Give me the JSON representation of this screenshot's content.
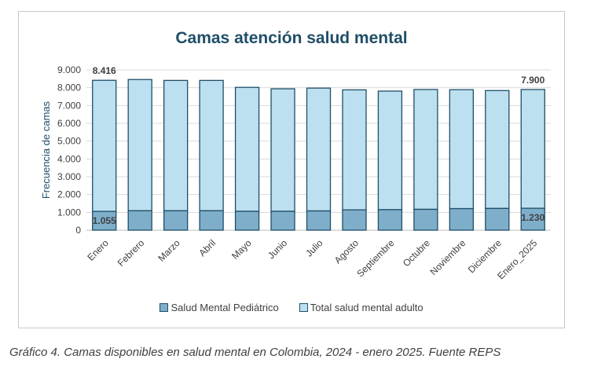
{
  "chart_data": {
    "type": "bar",
    "stacked": true,
    "title": "Camas atención salud mental",
    "xlabel": "",
    "ylabel": "Frecuencia de camas",
    "ylim": [
      0,
      9000
    ],
    "yticks": [
      "0",
      "1.000",
      "2.000",
      "3.000",
      "4.000",
      "5.000",
      "6.000",
      "7.000",
      "8.000",
      "9.000"
    ],
    "ytick_values": [
      0,
      1000,
      2000,
      3000,
      4000,
      5000,
      6000,
      7000,
      8000,
      9000
    ],
    "grid": true,
    "categories": [
      "Enero",
      "Febrero",
      "Marzo",
      "Abril",
      "Mayo",
      "Junio",
      "Julio",
      "Agosto",
      "Septiembre",
      "Octubre",
      "Noviembre",
      "Diciembre",
      "Enero_2025"
    ],
    "series": [
      {
        "name": "Salud Mental Pediátrico",
        "color": "#7faecb",
        "values": [
          1055,
          1090,
          1090,
          1090,
          1060,
          1060,
          1080,
          1140,
          1150,
          1170,
          1210,
          1220,
          1230
        ]
      },
      {
        "name": "Total salud mental adulto",
        "color": "#bde0f0",
        "values": [
          7361,
          7370,
          7320,
          7320,
          6960,
          6880,
          6900,
          6740,
          6660,
          6730,
          6680,
          6620,
          6670
        ]
      }
    ],
    "totals": [
      8416,
      8460,
      8410,
      8410,
      8020,
      7940,
      7980,
      7880,
      7810,
      7900,
      7890,
      7840,
      7900
    ],
    "data_labels": [
      {
        "category_index": 0,
        "text": "8.416",
        "kind": "total"
      },
      {
        "category_index": 12,
        "text": "7.900",
        "kind": "total"
      },
      {
        "category_index": 0,
        "text": "1.055",
        "kind": "pediatric"
      },
      {
        "category_index": 12,
        "text": "1.230",
        "kind": "pediatric"
      }
    ],
    "legend": {
      "position": "bottom",
      "entries": [
        "Salud Mental Pediátrico",
        "Total salud mental adulto"
      ]
    },
    "border_color": "#1f4e67"
  },
  "caption": "Gráfico 4. Camas disponibles en salud mental en Colombia, 2024 - enero 2025.  Fuente REPS"
}
